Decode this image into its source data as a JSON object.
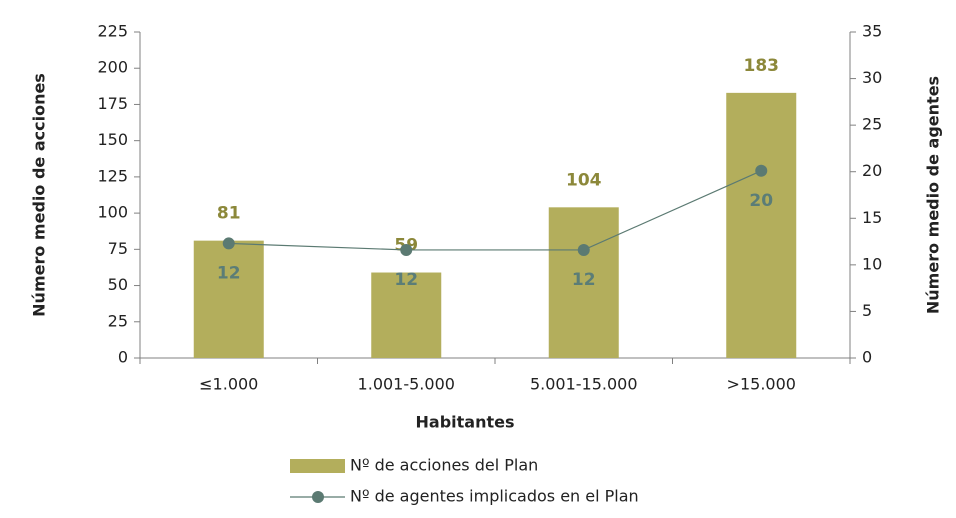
{
  "chart_data": {
    "type": "bar",
    "x_label": "Habitantes",
    "y_label": "Número medio de acciones",
    "y2_label": "Número medio de agentes",
    "categories": [
      "≤1.000",
      "1.001-5.000",
      "5.001-15.000",
      ">15.000"
    ],
    "series": [
      {
        "name": "Nº de acciones del Plan",
        "type": "bar",
        "color": "#b3ae5c",
        "label_color": "#8c883a",
        "values": [
          81,
          59,
          104,
          183
        ]
      },
      {
        "name": "Nº de agentes implicados en el Plan",
        "type": "line",
        "axis": "y2",
        "color": "#5b7a72",
        "label_color": "#5b7d77",
        "values": [
          12.3,
          11.6,
          11.6,
          20.1
        ],
        "value_labels": [
          "12",
          "12",
          "12",
          "20"
        ]
      }
    ],
    "ylim": [
      0,
      225
    ],
    "yticks": [
      0,
      25,
      50,
      75,
      100,
      125,
      150,
      175,
      200,
      225
    ],
    "y2lim": [
      0,
      35
    ],
    "y2ticks": [
      0,
      5,
      10,
      15,
      20,
      25,
      30,
      35
    ]
  }
}
